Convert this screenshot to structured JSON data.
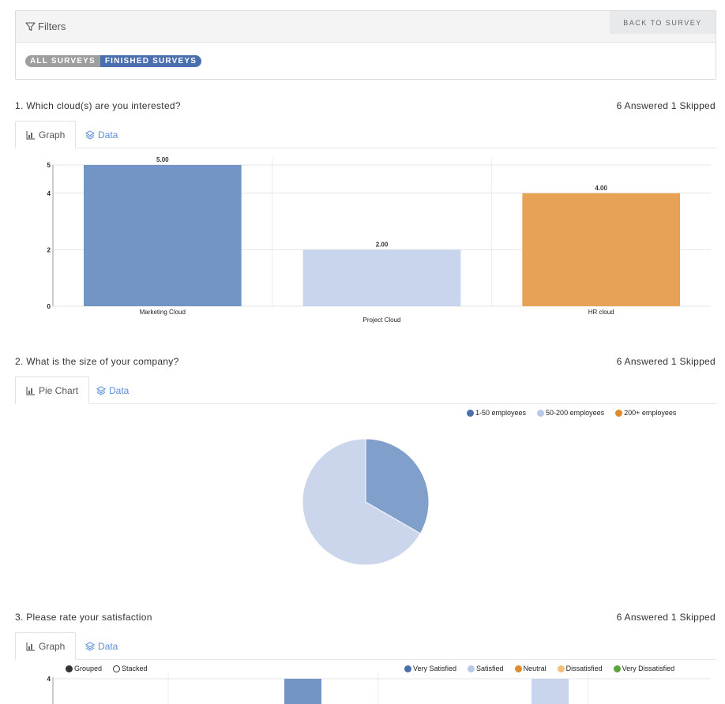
{
  "filters": {
    "title": "Filters",
    "back_label": "BACK TO SURVEY",
    "all_label": "ALL SURVEYS",
    "finished_label": "FINISHED SURVEYS"
  },
  "questions": [
    {
      "title": "1.  Which cloud(s) are you interested?",
      "stats": "6 Answered   1 Skipped",
      "tab_primary": "Graph",
      "tab_secondary": "Data"
    },
    {
      "title": "2.  What is the size of your company?",
      "stats": "6 Answered   1 Skipped",
      "tab_primary": "Pie Chart",
      "tab_secondary": "Data"
    },
    {
      "title": "3.  Please rate your satisfaction",
      "stats": "6 Answered   1 Skipped",
      "tab_primary": "Graph",
      "tab_secondary": "Data"
    }
  ],
  "colors": {
    "blue": "#7295c6",
    "light_blue": "#c8d5ed",
    "orange": "#e7a256",
    "dark_blue": "#4a6faf",
    "neutral": "#e08a2e",
    "dissatisfied": "#f0c07c",
    "very_dissatisfied": "#5aa53c"
  },
  "chart_data": [
    {
      "type": "bar",
      "categories": [
        "Marketing Cloud",
        "Project Cloud",
        "HR cloud"
      ],
      "values": [
        5,
        2,
        4
      ],
      "value_labels": [
        "5.00",
        "2.00",
        "4.00"
      ],
      "y_ticks": [
        "0",
        "2",
        "4",
        "5"
      ],
      "ylim": [
        0,
        5
      ],
      "grid": true,
      "title": "",
      "xlabel": "",
      "ylabel": ""
    },
    {
      "type": "pie",
      "labels": [
        "1-50 employees",
        "50-200 employees",
        "200+ employees"
      ],
      "values": [
        2,
        4,
        0
      ],
      "legend_position": "top-right"
    },
    {
      "type": "bar",
      "mode_options": [
        "Grouped",
        "Stacked"
      ],
      "selected_mode": "Grouped",
      "series_names": [
        "Very Satisfied",
        "Satisfied",
        "Neutral",
        "Dissatisfied",
        "Very Dissatisfied"
      ],
      "y_ticks": [
        "4"
      ],
      "legend_position": "top-right"
    }
  ]
}
